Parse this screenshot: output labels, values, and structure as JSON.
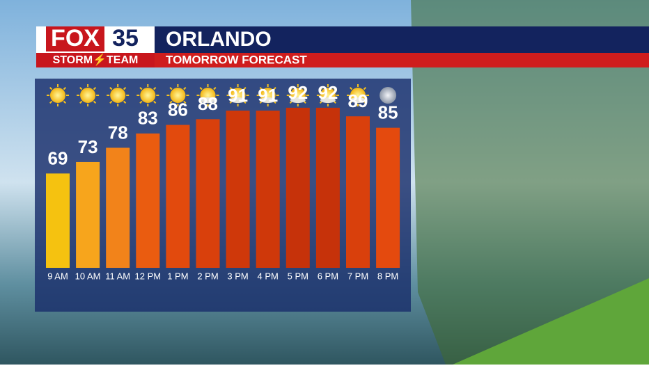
{
  "header": {
    "brand": "FOX",
    "channel": "35",
    "team": "STORM⚡TEAM"
  },
  "chart_data": {
    "type": "bar",
    "title": "ORLANDO",
    "subtitle": "TOMORROW FORECAST",
    "categories": [
      "9 AM",
      "10 AM",
      "11 AM",
      "12 PM",
      "1 PM",
      "2 PM",
      "3 PM",
      "4 PM",
      "5 PM",
      "6 PM",
      "7 PM",
      "8 PM"
    ],
    "values": [
      69,
      73,
      78,
      83,
      86,
      88,
      91,
      91,
      92,
      92,
      89,
      85
    ],
    "colors": [
      "#f5c210",
      "#f7a51c",
      "#f2831a",
      "#ea5c10",
      "#e24a0d",
      "#d9400c",
      "#cf380a",
      "#cf380a",
      "#c6320a",
      "#c6320a",
      "#d9400c",
      "#e44a0e"
    ],
    "ylim": [
      36,
      100
    ]
  }
}
